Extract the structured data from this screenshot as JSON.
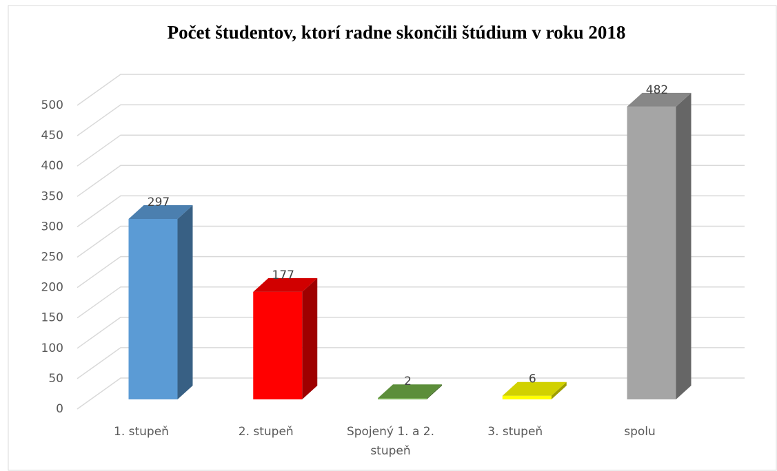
{
  "chart_data": {
    "type": "bar3d",
    "title": "Počet študentov, ktorí radne skončili štúdium v roku 2018",
    "categories": [
      "1. stupeň",
      "2. stupeň",
      "Spojený 1. a 2. stupeň",
      "3. stupeň",
      "spolu"
    ],
    "values": [
      297,
      177,
      2,
      6,
      482
    ],
    "colors": [
      "#5b9bd5",
      "#ff0000",
      "#70ad47",
      "#ffff00",
      "#a5a5a5"
    ],
    "ylim": [
      0,
      500
    ],
    "yticks": [
      0,
      50,
      100,
      150,
      200,
      250,
      300,
      350,
      400,
      450,
      500
    ],
    "grid": true
  }
}
